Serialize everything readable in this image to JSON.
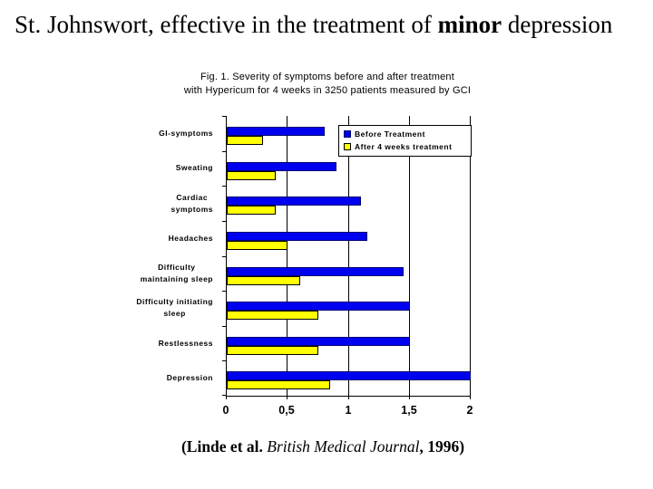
{
  "slide": {
    "title": {
      "prefix": "St. Johnswort, effective in the treatment of ",
      "bold_word": "minor",
      "suffix": " depression"
    },
    "citation": {
      "bold_prefix": "(Linde et al. ",
      "italic_text": "British Medical Journal",
      "bold_suffix": ", 1996)"
    }
  },
  "chart_data": {
    "type": "bar",
    "orientation": "horizontal",
    "title_lines": [
      "Fig. 1.  Severity of symptoms before and after treatment",
      "with Hypericum for 4 weeks in 3250 patients measured by GCI"
    ],
    "categories": [
      "GI-symptoms",
      "Sweating",
      "Cardiac\nsymptoms",
      "Headaches",
      "Difficulty\nmaintaining sleep",
      "Difficulty initiating\nsleep",
      "Restlessness",
      "Depression"
    ],
    "series": [
      {
        "name": "Before Treatment",
        "color": "#0000F0",
        "border_color": "#000070",
        "values": [
          0.8,
          0.9,
          1.1,
          1.15,
          1.45,
          1.5,
          1.5,
          2.0
        ]
      },
      {
        "name": "After 4 weeks treatment",
        "color": "#FFFF00",
        "border_color": "#000000",
        "values": [
          0.3,
          0.4,
          0.4,
          0.5,
          0.6,
          0.75,
          0.75,
          0.85
        ]
      }
    ],
    "xlim": [
      0,
      2
    ],
    "xticks": [
      "0",
      "0,5",
      "1",
      "1,5",
      "2"
    ],
    "xtick_values": [
      0,
      0.5,
      1,
      1.5,
      2
    ],
    "legend_position": "top-right",
    "gridlines": "vertical",
    "axis_color": "#000000",
    "background_color": "#FFFFFF"
  }
}
